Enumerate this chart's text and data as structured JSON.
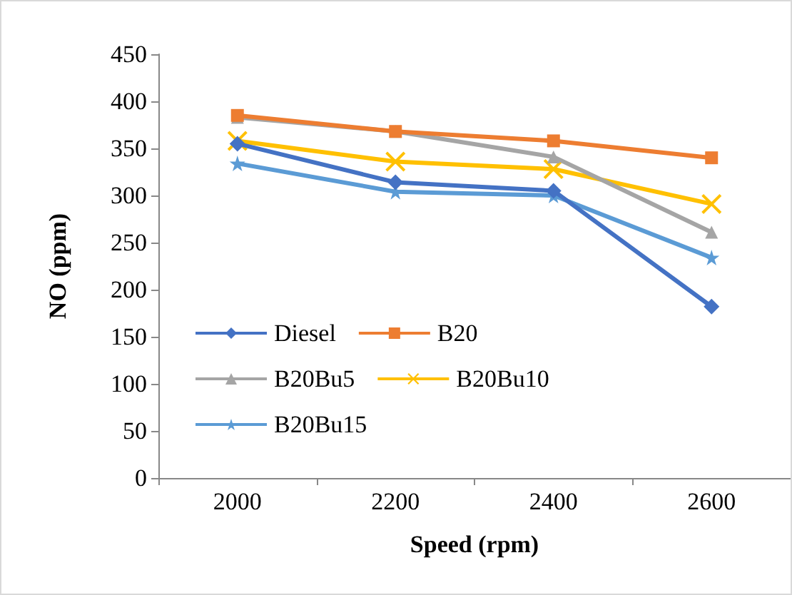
{
  "chart_data": {
    "type": "line",
    "xlabel": "Speed (rpm)",
    "ylabel": "NO (ppm)",
    "categories": [
      "2000",
      "2200",
      "2400",
      "2600"
    ],
    "series": [
      {
        "name": "Diesel",
        "color": "#4472c4",
        "marker": "diamond",
        "values": [
          355,
          314,
          305,
          182
        ]
      },
      {
        "name": "B20",
        "color": "#ed7d31",
        "marker": "square",
        "values": [
          385,
          368,
          358,
          340
        ]
      },
      {
        "name": "B20Bu5",
        "color": "#a5a5a5",
        "marker": "triangle",
        "values": [
          383,
          368,
          341,
          261
        ]
      },
      {
        "name": "B20Bu10",
        "color": "#ffc000",
        "marker": "cross",
        "values": [
          358,
          336,
          328,
          291
        ]
      },
      {
        "name": "B20Bu15",
        "color": "#5b9bd5",
        "marker": "star",
        "values": [
          334,
          304,
          300,
          234
        ]
      }
    ],
    "ylim": [
      0,
      450
    ],
    "yticks": [
      0,
      50,
      100,
      150,
      200,
      250,
      300,
      350,
      400,
      450
    ],
    "grid": false,
    "legend": "bottom left"
  }
}
